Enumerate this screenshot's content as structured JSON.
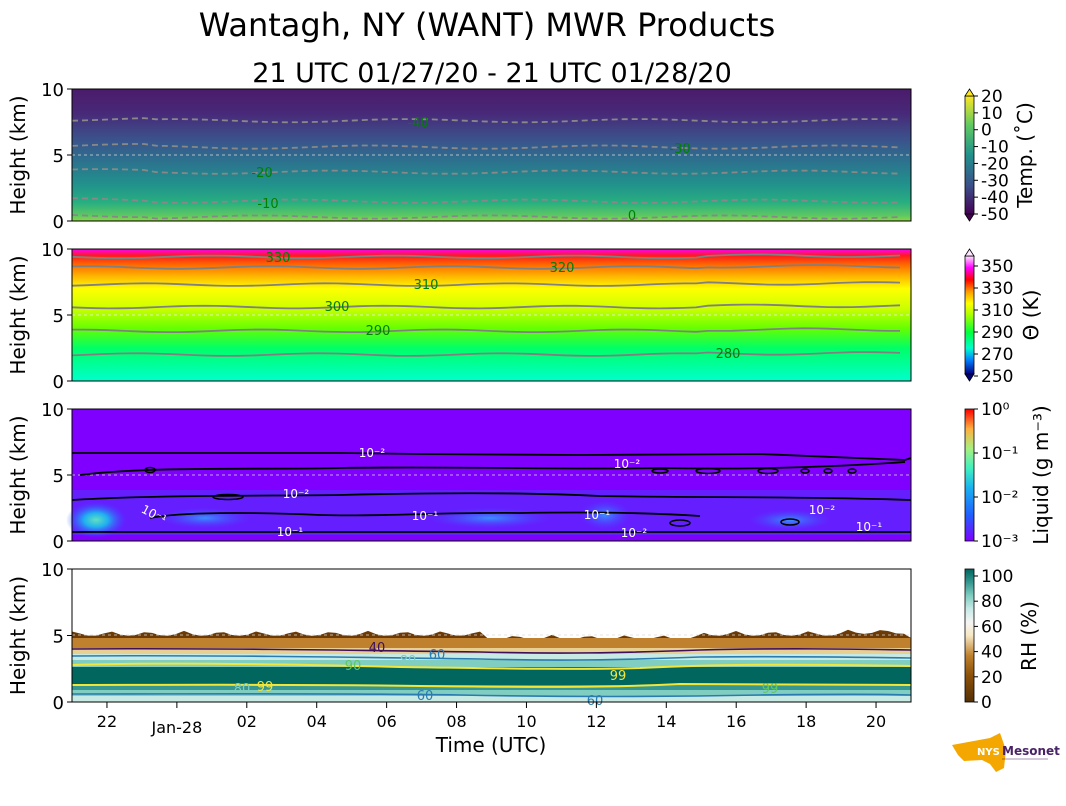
{
  "title": "Wantagh, NY (WANT) MWR Products",
  "subtitle": "21 UTC 01/27/20 - 21 UTC 01/28/20",
  "logo_text": "NYS Mesonet",
  "chart_data": {
    "type": "heatmap",
    "xlabel": "Time (UTC)",
    "x_ticks": [
      "22",
      "Jan-28",
      "02",
      "04",
      "06",
      "08",
      "10",
      "12",
      "14",
      "16",
      "18",
      "20"
    ],
    "x_range_hours": [
      21,
      45
    ],
    "panels": [
      {
        "name": "temperature",
        "ylabel": "Height (km)",
        "ylim": [
          0,
          10
        ],
        "y_ticks": [
          "0",
          "5",
          "10"
        ],
        "colorbar_label": "Temp. (˚C)",
        "colorbar_ticks": [
          "20",
          "10",
          "0",
          "-10",
          "-20",
          "-30",
          "-40",
          "-50"
        ],
        "contour_labels": [
          "-40",
          "-30",
          "-20",
          "-10",
          "0"
        ],
        "contours": [
          {
            "value": -40,
            "height_km": 7.6
          },
          {
            "value": -30,
            "height_km": 5.6
          },
          {
            "value": -20,
            "height_km": 3.7
          },
          {
            "value": -10,
            "height_km": 1.5
          },
          {
            "value": 0,
            "height_km": 0.3
          }
        ]
      },
      {
        "name": "potential_temperature",
        "ylabel": "Height (km)",
        "ylim": [
          0,
          10
        ],
        "y_ticks": [
          "0",
          "5",
          "10"
        ],
        "colorbar_label": "Θ (K)",
        "colorbar_ticks": [
          "350",
          "330",
          "310",
          "290",
          "270",
          "250"
        ],
        "contour_labels": [
          "330",
          "320",
          "310",
          "300",
          "290",
          "280"
        ],
        "contours": [
          {
            "value": 280,
            "height_km": 2.0
          },
          {
            "value": 290,
            "height_km": 3.8
          },
          {
            "value": 300,
            "height_km": 5.6
          },
          {
            "value": 310,
            "height_km": 7.3
          },
          {
            "value": 320,
            "height_km": 8.6
          },
          {
            "value": 330,
            "height_km": 9.4
          }
        ]
      },
      {
        "name": "liquid",
        "ylabel": "Height (km)",
        "ylim": [
          0,
          10
        ],
        "y_ticks": [
          "0",
          "5",
          "10"
        ],
        "colorbar_label": "Liquid (g m⁻³)",
        "colorbar_ticks": [
          "10⁰",
          "10⁻¹",
          "10⁻²",
          "10⁻³"
        ],
        "contour_labels": [
          "10⁻²",
          "10⁻²",
          "10⁻²",
          "10⁻¹",
          "10⁻¹",
          "10⁻¹",
          "10⁻¹",
          "10⁻²",
          "10⁻²",
          "10⁻¹"
        ]
      },
      {
        "name": "relative_humidity",
        "ylabel": "Height (km)",
        "ylim": [
          0,
          10
        ],
        "y_ticks": [
          "0",
          "5",
          "10"
        ],
        "colorbar_label": "RH (%)",
        "colorbar_ticks": [
          "100",
          "80",
          "60",
          "40",
          "20",
          "0"
        ],
        "contour_labels": [
          "40",
          "60",
          "60",
          "90",
          "80",
          "99",
          "80",
          "99",
          "99",
          "60",
          "60",
          "80"
        ],
        "data_top_km": 5.8
      }
    ],
    "colors": {
      "temp": [
        "#4a1c6e",
        "#462d7a",
        "#3b4a8a",
        "#2c6b8e",
        "#21908c",
        "#29af7f",
        "#5dc863",
        "#aadc32"
      ],
      "theta": [
        "#00ffcc",
        "#00ff80",
        "#55ff00",
        "#ccff00",
        "#ffff00",
        "#ffd000",
        "#ff8800",
        "#ff2200",
        "#ff00ff"
      ],
      "liquid_bg": "#7f00ff",
      "rh": [
        "#6b3a06",
        "#9a5e17",
        "#c99447",
        "#e8cf93",
        "#f2eee0",
        "#c6e9e3",
        "#80cdc1",
        "#35978f",
        "#01665e"
      ],
      "contour_green": "#008000",
      "contour_gray": "#888888"
    }
  }
}
